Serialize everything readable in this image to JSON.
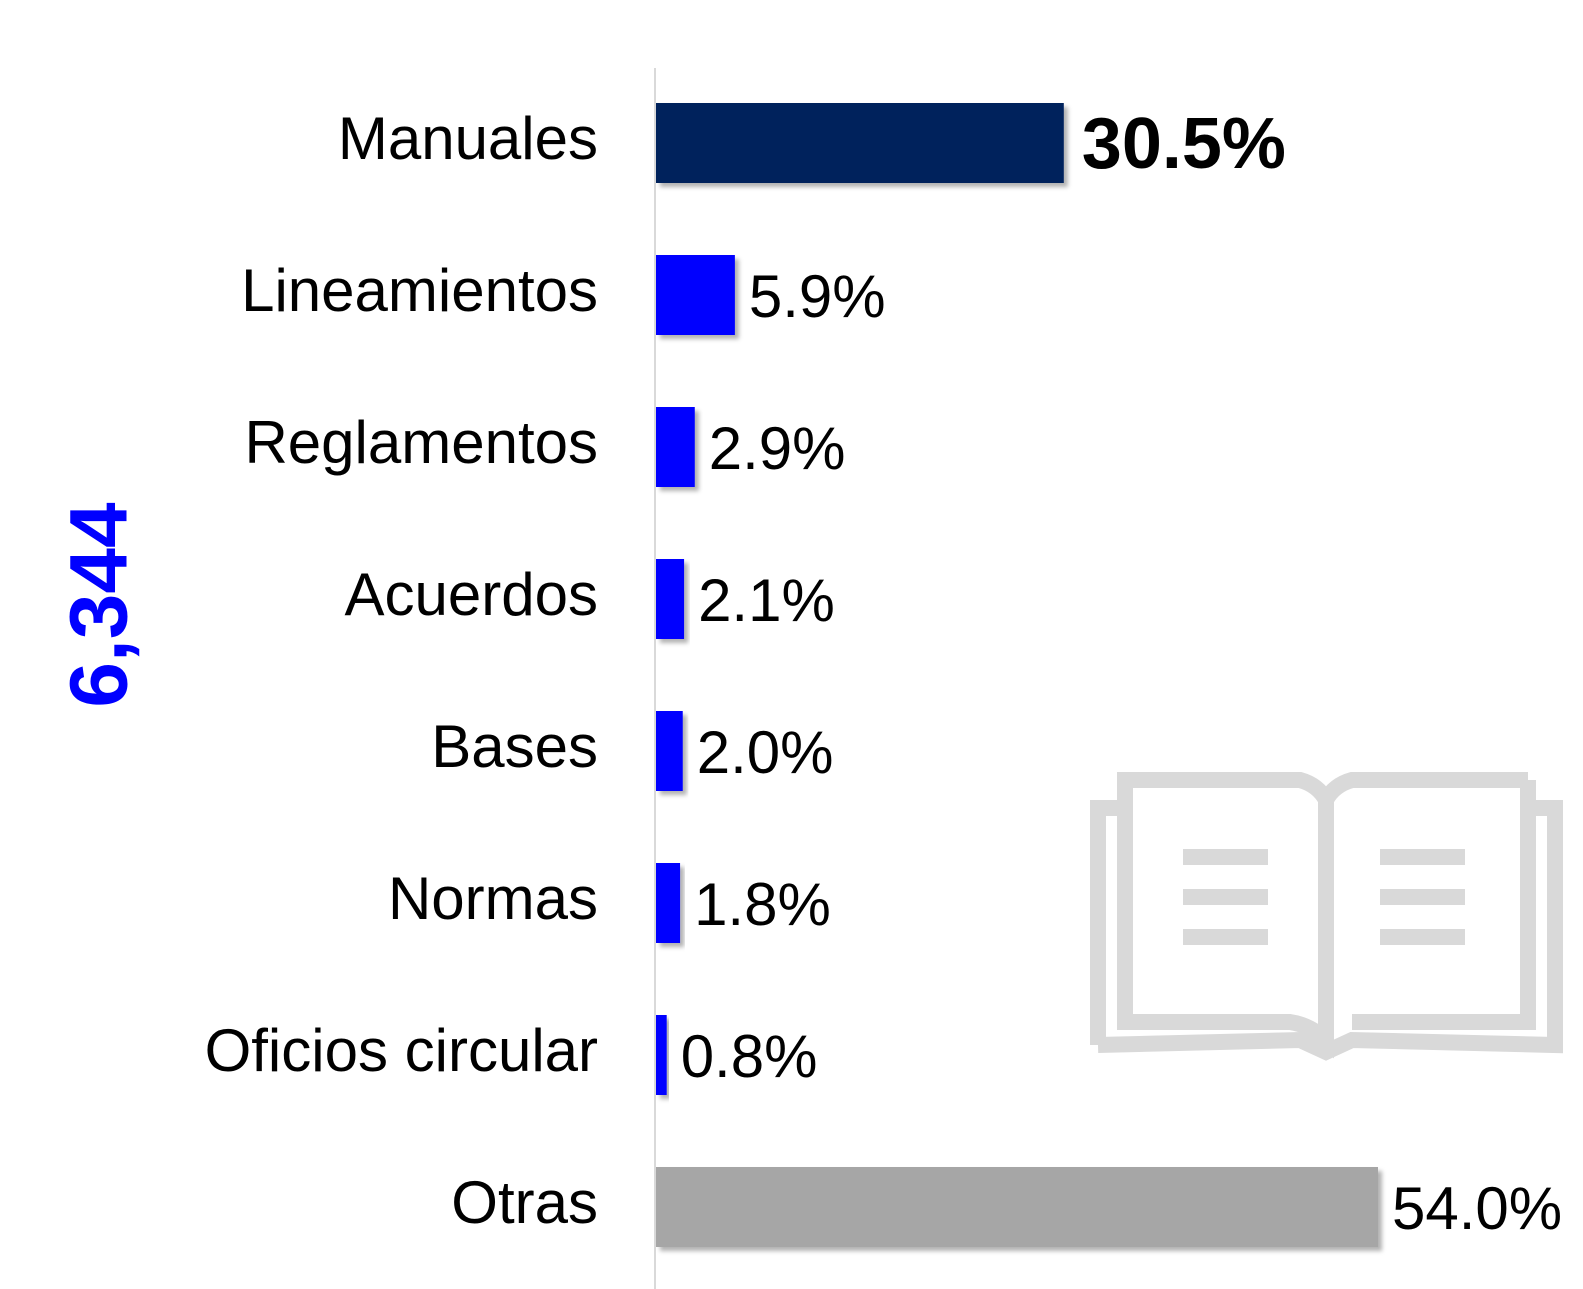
{
  "chart_data": {
    "type": "bar",
    "orientation": "horizontal",
    "side_label": "6,344",
    "categories": [
      "Manuales",
      "Lineamientos",
      "Reglamentos",
      "Acuerdos",
      "Bases",
      "Normas",
      "Oficios circular",
      "Otras"
    ],
    "values": [
      30.5,
      5.9,
      2.9,
      2.1,
      2.0,
      1.8,
      0.8,
      54.0
    ],
    "value_labels": [
      "30.5%",
      "5.9%",
      "2.9%",
      "2.1%",
      "2.0%",
      "1.8%",
      "0.8%",
      "54.0%"
    ],
    "colors": [
      "#00205b",
      "#0000ff",
      "#0000ff",
      "#0000ff",
      "#0000ff",
      "#0000ff",
      "#0000ff",
      "#a6a6a6"
    ]
  }
}
